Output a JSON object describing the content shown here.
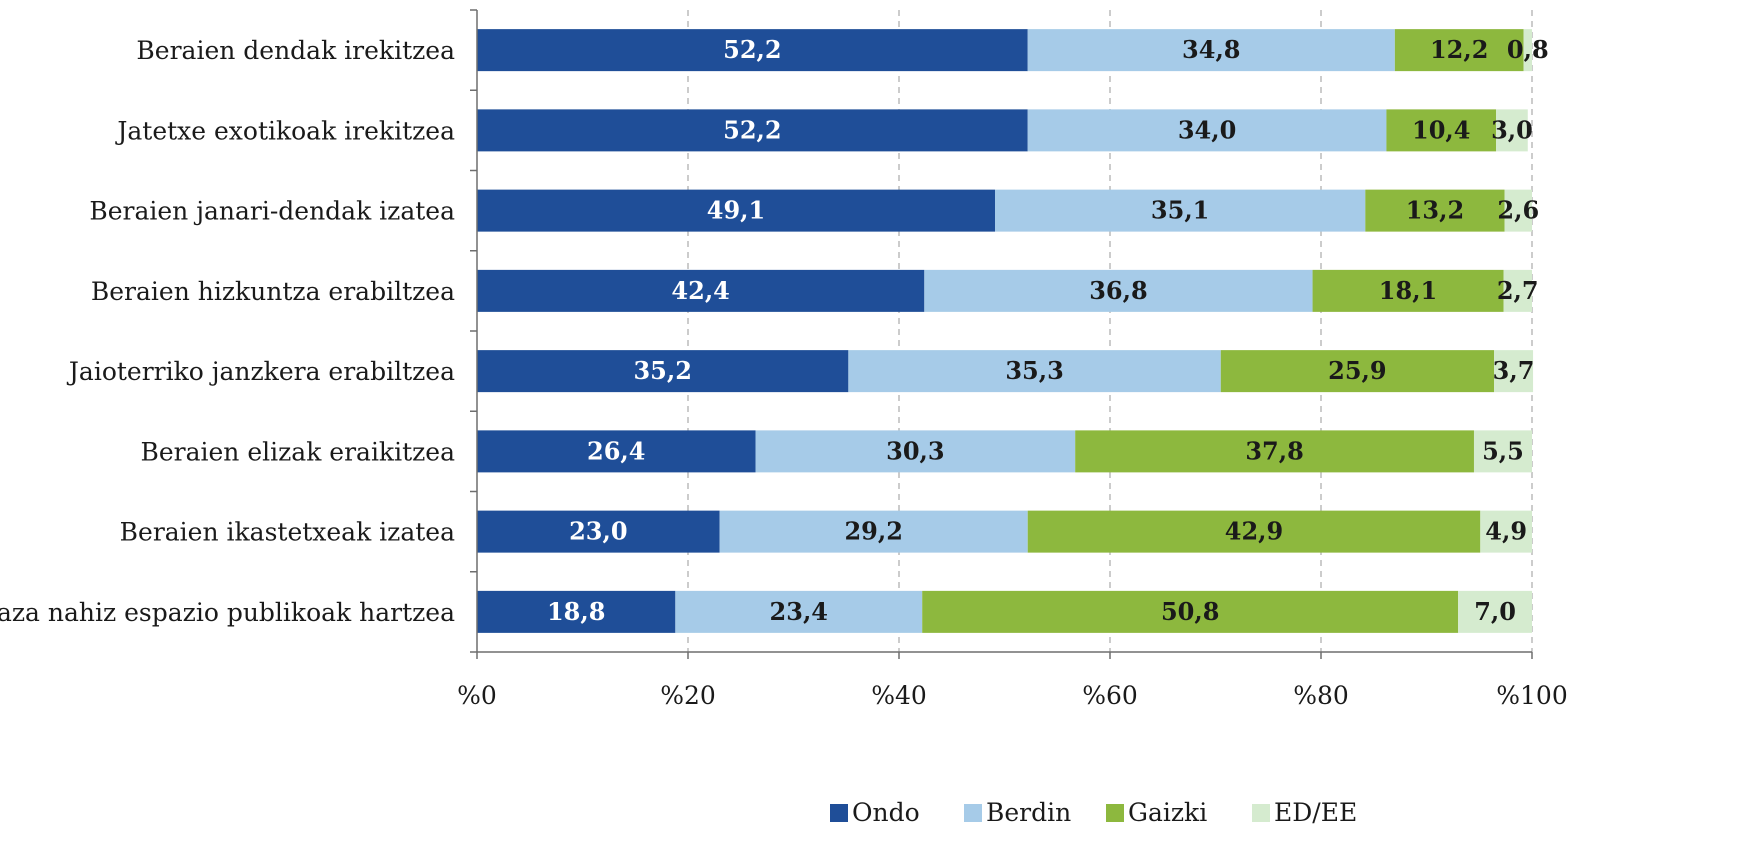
{
  "chart_data": {
    "type": "bar",
    "orientation": "horizontal",
    "stacked": true,
    "categories": [
      "Beraien dendak irekitzea",
      "Jatetxe exotikoak irekitzea",
      "Beraien janari-dendak izatea",
      "Beraien hizkuntza erabiltzea",
      "Jaioterriko janzkera erabiltzea",
      "Beraien elizak eraikitzea",
      "Beraien ikastetxeak izatea",
      "Plaza nahiz espazio publikoak hartzea"
    ],
    "series": [
      {
        "name": "Ondo",
        "color": "#1f4e98",
        "label_color": "#ffffff",
        "values": [
          52.2,
          52.2,
          49.1,
          42.4,
          35.2,
          26.4,
          23.0,
          18.8
        ],
        "labels": [
          "52,2",
          "52,2",
          "49,1",
          "42,4",
          "35,2",
          "26,4",
          "23,0",
          "18,8"
        ]
      },
      {
        "name": "Berdin",
        "color": "#a6cbe8",
        "label_color": "#1a1a1a",
        "values": [
          34.8,
          34.0,
          35.1,
          36.8,
          35.3,
          30.3,
          29.2,
          23.4
        ],
        "labels": [
          "34,8",
          "34,0",
          "35,1",
          "36,8",
          "35,3",
          "30,3",
          "29,2",
          "23,4"
        ]
      },
      {
        "name": "Gaizki",
        "color": "#8db83e",
        "label_color": "#1a1a1a",
        "values": [
          12.2,
          10.4,
          13.2,
          18.1,
          25.9,
          37.8,
          42.9,
          50.8
        ],
        "labels": [
          "12,2",
          "10,4",
          "13,2",
          "18,1",
          "25,9",
          "37,8",
          "42,9",
          "50,8"
        ]
      },
      {
        "name": "ED/EE",
        "color": "#d5ebcf",
        "label_color": "#1a1a1a",
        "values": [
          0.8,
          3.0,
          2.6,
          2.7,
          3.7,
          5.5,
          4.9,
          7.0
        ],
        "labels": [
          "0,8",
          "3,0",
          "2,6",
          "2,7",
          "3,7",
          "5,5",
          "4,9",
          "7,0"
        ]
      }
    ],
    "xlim": [
      0,
      100
    ],
    "x_ticks": [
      0,
      20,
      40,
      60,
      80,
      100
    ],
    "x_tick_labels": [
      "%0",
      "%20",
      "%40",
      "%60",
      "%80",
      "%100"
    ],
    "grid": "vertical-dashed",
    "legend_position": "bottom",
    "title": "",
    "xlabel": "",
    "ylabel": ""
  }
}
